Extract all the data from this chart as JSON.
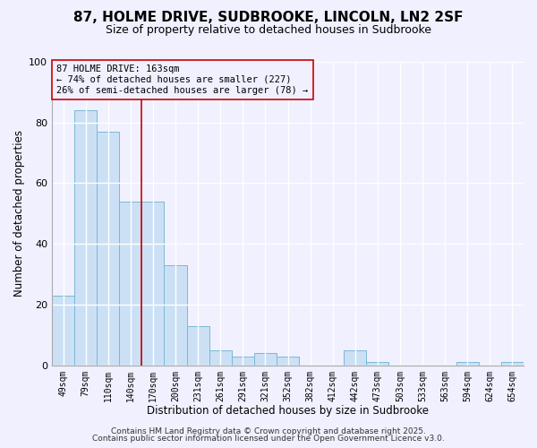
{
  "title": "87, HOLME DRIVE, SUDBROOKE, LINCOLN, LN2 2SF",
  "subtitle": "Size of property relative to detached houses in Sudbrooke",
  "xlabel": "Distribution of detached houses by size in Sudbrooke",
  "ylabel": "Number of detached properties",
  "bar_labels": [
    "49sqm",
    "79sqm",
    "110sqm",
    "140sqm",
    "170sqm",
    "200sqm",
    "231sqm",
    "261sqm",
    "291sqm",
    "321sqm",
    "352sqm",
    "382sqm",
    "412sqm",
    "442sqm",
    "473sqm",
    "503sqm",
    "533sqm",
    "563sqm",
    "594sqm",
    "624sqm",
    "654sqm"
  ],
  "bar_values": [
    23,
    84,
    77,
    54,
    54,
    33,
    13,
    5,
    3,
    4,
    3,
    0,
    0,
    5,
    1,
    0,
    0,
    0,
    1,
    0,
    1
  ],
  "bar_color": "#cce0f5",
  "bar_edgecolor": "#7ab8d4",
  "vline_color": "#cc0000",
  "annotation_line1": "87 HOLME DRIVE: 163sqm",
  "annotation_line2": "← 74% of detached houses are smaller (227)",
  "annotation_line3": "26% of semi-detached houses are larger (78) →",
  "annotation_box_edgecolor": "#cc0000",
  "ylim": [
    0,
    100
  ],
  "yticks": [
    0,
    20,
    40,
    60,
    80,
    100
  ],
  "bg_color": "#f0f0ff",
  "grid_color": "#ffffff",
  "footer1": "Contains HM Land Registry data © Crown copyright and database right 2025.",
  "footer2": "Contains public sector information licensed under the Open Government Licence v3.0.",
  "title_fontsize": 11,
  "subtitle_fontsize": 9,
  "xlabel_fontsize": 8.5,
  "ylabel_fontsize": 8.5,
  "annotation_fontsize": 7.5,
  "footer_fontsize": 6.5,
  "tick_fontsize": 7
}
